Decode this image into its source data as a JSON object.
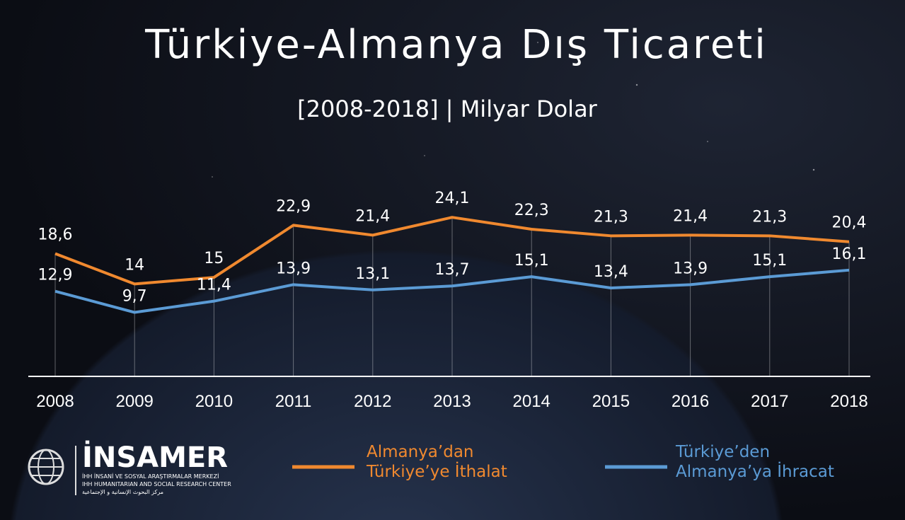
{
  "chart_data": {
    "type": "line",
    "title": "Türkiye-Almanya Dış Ticareti",
    "subtitle": "[2008-2018] | Milyar Dolar",
    "categories": [
      "2008",
      "2009",
      "2010",
      "2011",
      "2012",
      "2013",
      "2014",
      "2015",
      "2016",
      "2017",
      "2018"
    ],
    "series": [
      {
        "name": "Almanya’dan Türkiye’ye İthalat",
        "color": "#f0892f",
        "values": [
          18.6,
          14,
          15,
          22.9,
          21.4,
          24.1,
          22.3,
          21.3,
          21.4,
          21.3,
          20.4
        ],
        "value_labels": [
          "18,6",
          "14",
          "15",
          "22,9",
          "21,4",
          "24,1",
          "22,3",
          "21,3",
          "21,4",
          "21,3",
          "20,4"
        ]
      },
      {
        "name": "Türkiye’den Almanya’ya İhracat",
        "color": "#5b9bd5",
        "values": [
          12.9,
          9.7,
          11.4,
          13.9,
          13.1,
          13.7,
          15.1,
          13.4,
          13.9,
          15.1,
          16.1
        ],
        "value_labels": [
          "12,9",
          "9,7",
          "11,4",
          "13,9",
          "13,1",
          "13,7",
          "15,1",
          "13,4",
          "13,9",
          "15,1",
          "16,1"
        ]
      }
    ],
    "ylim": [
      0,
      25
    ]
  },
  "logo": {
    "name": "İNSAMER",
    "line1": "İHH İNSANİ VE SOSYAL ARAŞTIRMALAR MERKEZİ",
    "line2": "IHH HUMANITARIAN AND SOCIAL RESEARCH CENTER",
    "line3": "مركز البحوث الإنسانية و الإجتماعية"
  }
}
